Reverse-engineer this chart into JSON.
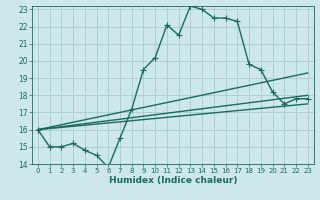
{
  "xlabel": "Humidex (Indice chaleur)",
  "background_color": "#cce8e8",
  "grid_color": "#aacccc",
  "line_color": "#1a6b5a",
  "xlim": [
    -0.5,
    23.5
  ],
  "ylim": [
    14,
    23.2
  ],
  "yticks": [
    14,
    15,
    16,
    17,
    18,
    19,
    20,
    21,
    22,
    23
  ],
  "xticks": [
    0,
    1,
    2,
    3,
    4,
    5,
    6,
    7,
    8,
    9,
    10,
    11,
    12,
    13,
    14,
    15,
    16,
    17,
    18,
    19,
    20,
    21,
    22,
    23
  ],
  "series1_x": [
    0,
    1,
    2,
    3,
    4,
    5,
    6,
    7,
    8,
    9,
    10,
    11,
    12,
    13,
    14,
    15,
    16,
    17,
    18,
    19,
    20,
    21,
    22,
    23
  ],
  "series1_y": [
    16.0,
    15.0,
    15.0,
    15.2,
    14.8,
    14.5,
    13.8,
    15.5,
    17.2,
    19.5,
    20.2,
    22.1,
    21.5,
    23.2,
    23.0,
    22.5,
    22.5,
    22.3,
    19.8,
    19.5,
    18.2,
    17.5,
    17.8,
    17.8
  ],
  "series2_x": [
    0,
    23
  ],
  "series2_y": [
    16.0,
    19.3
  ],
  "series3_x": [
    0,
    23
  ],
  "series3_y": [
    16.0,
    18.0
  ],
  "series4_x": [
    0,
    23
  ],
  "series4_y": [
    16.0,
    17.5
  ],
  "marker": "+",
  "markersize": 4,
  "linewidth": 1.0
}
